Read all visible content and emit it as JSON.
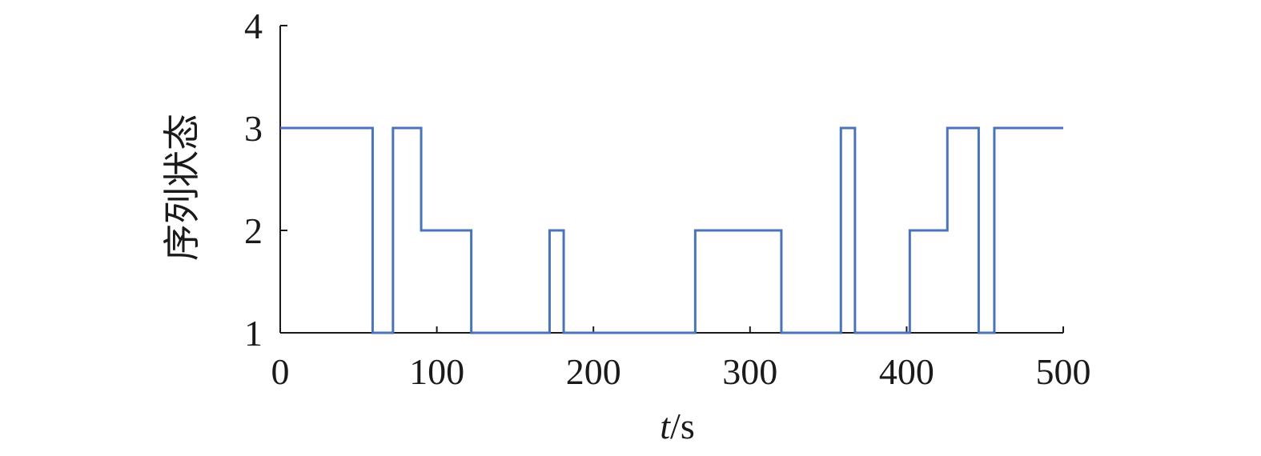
{
  "chart_data": {
    "type": "line",
    "step": true,
    "xlabel_italic": "t",
    "xlabel_unit": "/s",
    "ylabel": "序列状态",
    "xlim": [
      0,
      500
    ],
    "ylim": [
      1,
      4
    ],
    "xticks": [
      0,
      100,
      200,
      300,
      400,
      500
    ],
    "yticks": [
      1,
      2,
      3,
      4
    ],
    "grid": false,
    "line_color": "#4a73b8",
    "series": [
      {
        "x": [
          0,
          59,
          72,
          90,
          122,
          172,
          181,
          265,
          320,
          358,
          367,
          402,
          426,
          446,
          456,
          500
        ],
        "y": [
          3,
          1,
          3,
          2,
          1,
          2,
          1,
          2,
          1,
          3,
          1,
          2,
          3,
          1,
          3,
          3
        ]
      }
    ]
  }
}
